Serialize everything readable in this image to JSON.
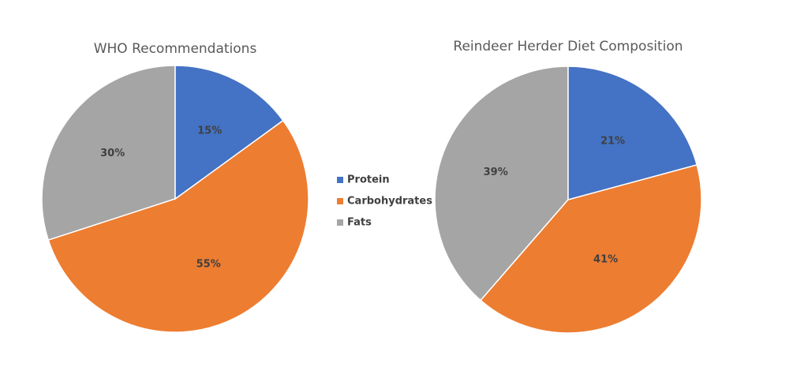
{
  "chart_data": [
    {
      "type": "pie",
      "title": "WHO Recommendations",
      "categories": [
        "Protein",
        "Carbohydrates",
        "Fats"
      ],
      "values": [
        15,
        55,
        30
      ],
      "labels": [
        "15%",
        "55%",
        "30%"
      ],
      "colors": [
        "#4472C4",
        "#ED7D31",
        "#A5A5A5"
      ],
      "start_angle": "12 o'clock",
      "direction": "clockwise"
    },
    {
      "type": "pie",
      "title": "Reindeer Herder Diet Composition",
      "categories": [
        "Protein",
        "Carbohydrates",
        "Fats"
      ],
      "values": [
        21,
        41,
        39
      ],
      "labels": [
        "21%",
        "41%",
        "39%"
      ],
      "colors": [
        "#4472C4",
        "#ED7D31",
        "#A5A5A5"
      ],
      "start_angle": "12 o'clock",
      "direction": "clockwise"
    }
  ],
  "legend": {
    "placement": "center",
    "entries": [
      {
        "label": "Protein",
        "color": "#4472C4"
      },
      {
        "label": "Carbohydrates",
        "color": "#ED7D31"
      },
      {
        "label": "Fats",
        "color": "#A5A5A5"
      }
    ]
  }
}
